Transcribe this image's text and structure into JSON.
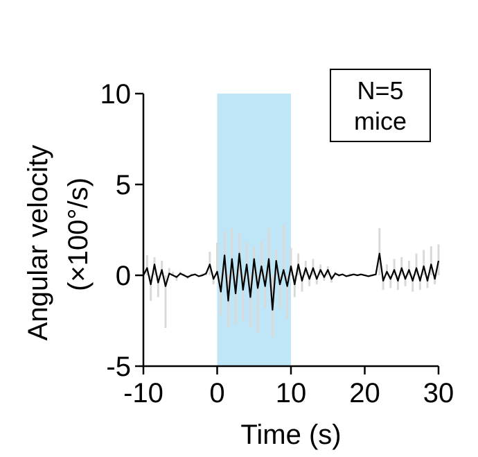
{
  "chart_data": {
    "type": "line",
    "xlabel": "Time (s)",
    "ylabel_line1": "Angular velocity",
    "ylabel_line2": "(×100°/s)",
    "xlim": [
      -10,
      30
    ],
    "ylim": [
      -5,
      10
    ],
    "xticks": [
      -10,
      0,
      10,
      20,
      30
    ],
    "yticks": [
      -5,
      0,
      5,
      10
    ],
    "xtick_labels": [
      "-10",
      "0",
      "10",
      "20",
      "30"
    ],
    "ytick_labels": [
      "-5",
      "0",
      "5",
      "10"
    ],
    "stim_window": [
      0,
      10
    ],
    "annotation_line1": "N=5",
    "annotation_line2": "mice",
    "grid": false,
    "colors": {
      "mean": "#000000",
      "sem": "#d9d9d9",
      "stim": "#bfe6f7",
      "axis": "#000000"
    },
    "series": [
      {
        "role": "mean",
        "x": [
          -10,
          -9.5,
          -9,
          -8.5,
          -8,
          -7.5,
          -7,
          -6.5,
          -6,
          -5.5,
          -5,
          -4.5,
          -4,
          -3.5,
          -3,
          -2.5,
          -2,
          -1.5,
          -1,
          -0.5,
          0,
          0.5,
          1,
          1.5,
          2,
          2.5,
          3,
          3.5,
          4,
          4.5,
          5,
          5.5,
          6,
          6.5,
          7,
          7.5,
          8,
          8.5,
          9,
          9.5,
          10,
          10.5,
          11,
          11.5,
          12,
          12.5,
          13,
          13.5,
          14,
          14.5,
          15,
          15.5,
          16,
          16.5,
          17,
          17.5,
          18,
          18.5,
          19,
          19.5,
          20,
          20.5,
          21,
          21.5,
          22,
          22.5,
          23,
          23.5,
          24,
          24.5,
          25,
          25.5,
          26,
          26.5,
          27,
          27.5,
          28,
          28.5,
          29,
          29.5,
          30
        ],
        "y": [
          0,
          0.4,
          -0.5,
          0.6,
          -0.4,
          0.3,
          -0.6,
          0.1,
          0,
          -0.1,
          0.1,
          0,
          -0.1,
          0,
          0.05,
          -0.05,
          0,
          0.1,
          0.6,
          -0.2,
          0.2,
          -0.9,
          1.1,
          -1.4,
          0.9,
          -1,
          1.2,
          -0.8,
          0.6,
          -1.2,
          0.9,
          -0.7,
          0.5,
          -0.6,
          0.9,
          -1.9,
          0.8,
          -0.5,
          0.3,
          -0.6,
          0.5,
          -0.5,
          0.6,
          -0.3,
          0.4,
          -0.2,
          0.4,
          -0.2,
          0.3,
          -0.1,
          0.3,
          -0.2,
          0.1,
          0,
          0.05,
          -0.05,
          0,
          0.05,
          0,
          0.05,
          0,
          -0.05,
          0,
          0.05,
          1.2,
          -0.3,
          0.2,
          -0.2,
          0.3,
          -0.3,
          0.4,
          -0.2,
          0.3,
          -0.3,
          0.4,
          -0.3,
          0.5,
          -0.3,
          0.6,
          -0.2,
          0.8
        ]
      },
      {
        "role": "sem",
        "x": [
          -10,
          -9.5,
          -9,
          -8.5,
          -8,
          -7.5,
          -7,
          -6.5,
          -6,
          -5.5,
          -5,
          -4.5,
          -4,
          -3.5,
          -3,
          -2.5,
          -2,
          -1.5,
          -1,
          -0.5,
          0,
          0.5,
          1,
          1.5,
          2,
          2.5,
          3,
          3.5,
          4,
          4.5,
          5,
          5.5,
          6,
          6.5,
          7,
          7.5,
          8,
          8.5,
          9,
          9.5,
          10,
          10.5,
          11,
          11.5,
          12,
          12.5,
          13,
          13.5,
          14,
          14.5,
          15,
          15.5,
          16,
          16.5,
          17,
          17.5,
          18,
          18.5,
          19,
          19.5,
          20,
          20.5,
          21,
          21.5,
          22,
          22.5,
          23,
          23.5,
          24,
          24.5,
          25,
          25.5,
          26,
          26.5,
          27,
          27.5,
          28,
          28.5,
          29,
          29.5,
          30
        ],
        "y": [
          0,
          1.1,
          -1.4,
          1,
          -1.2,
          0.8,
          -2.9,
          0.4,
          0.2,
          -0.3,
          0.2,
          0.1,
          -0.2,
          0.1,
          0.1,
          -0.1,
          0.1,
          0.2,
          1.3,
          -0.5,
          1.8,
          -2.2,
          2.4,
          -2.9,
          2.6,
          -2.7,
          2.3,
          -2.5,
          1.8,
          -2.9,
          1.6,
          -3.2,
          1.9,
          -1.8,
          2.6,
          -3.4,
          1.4,
          -1.8,
          2.8,
          -2.4,
          1.5,
          -1.2,
          1.2,
          -0.9,
          0.8,
          -0.6,
          0.9,
          -0.5,
          0.6,
          -0.3,
          0.5,
          -0.4,
          0.2,
          -0.1,
          0.1,
          -0.1,
          0.1,
          0.1,
          0,
          0.1,
          0,
          -0.1,
          0,
          0.1,
          2.6,
          -0.8,
          0.6,
          -0.7,
          0.9,
          -0.8,
          1,
          -0.6,
          0.8,
          -0.9,
          1.2,
          -0.8,
          1.4,
          -0.7,
          1.6,
          -0.5,
          1.7
        ]
      }
    ]
  }
}
